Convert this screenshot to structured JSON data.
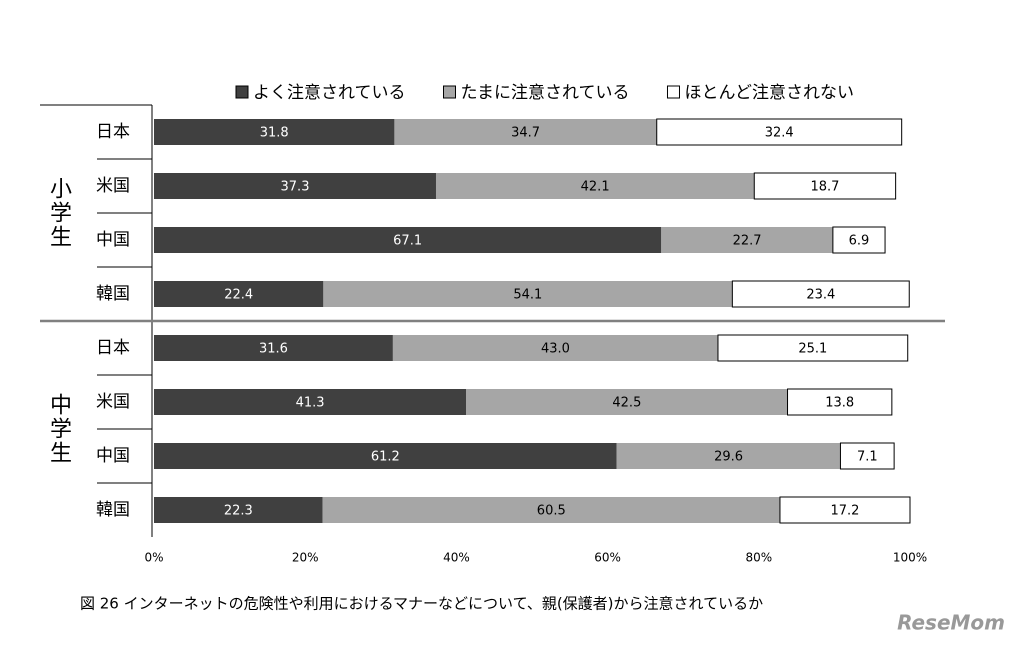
{
  "chart_data": {
    "type": "stacked-bar-horizontal",
    "caption": "図 26  インターネットの危険性や利用におけるマナーなどについて、親(保護者)から注意されているか",
    "watermark": "ReseMom",
    "groups": [
      "小学生",
      "中学生"
    ],
    "categories": [
      "日本",
      "米国",
      "中国",
      "韓国",
      "日本",
      "米国",
      "中国",
      "韓国"
    ],
    "series": [
      {
        "name": "よく注意されている",
        "color": "#404040",
        "label_color": "#ffffff",
        "values": [
          31.8,
          37.3,
          67.1,
          22.4,
          31.6,
          41.3,
          61.2,
          22.3
        ]
      },
      {
        "name": "たまに注意されている",
        "color": "#a6a6a6",
        "label_color": "#000000",
        "values": [
          34.7,
          42.1,
          22.7,
          54.1,
          43.0,
          42.5,
          29.6,
          60.5
        ],
        "value_labels": [
          "34.7",
          "42.1",
          "22.7",
          "54.1",
          "43.0",
          "42.5",
          "29.6",
          "60.5"
        ]
      },
      {
        "name": "ほとんど注意されない",
        "color": "#ffffff",
        "label_color": "#000000",
        "values": [
          32.4,
          18.7,
          6.9,
          23.4,
          25.1,
          13.8,
          7.1,
          17.2
        ]
      }
    ],
    "xlim": [
      0,
      100
    ],
    "xticks": [
      {
        "value": 0,
        "label": "0%"
      },
      {
        "value": 20,
        "label": "20%"
      },
      {
        "value": 40,
        "label": "40%"
      },
      {
        "value": 60,
        "label": "60%"
      },
      {
        "value": 80,
        "label": "80%"
      },
      {
        "value": 100,
        "label": "100%"
      }
    ]
  }
}
